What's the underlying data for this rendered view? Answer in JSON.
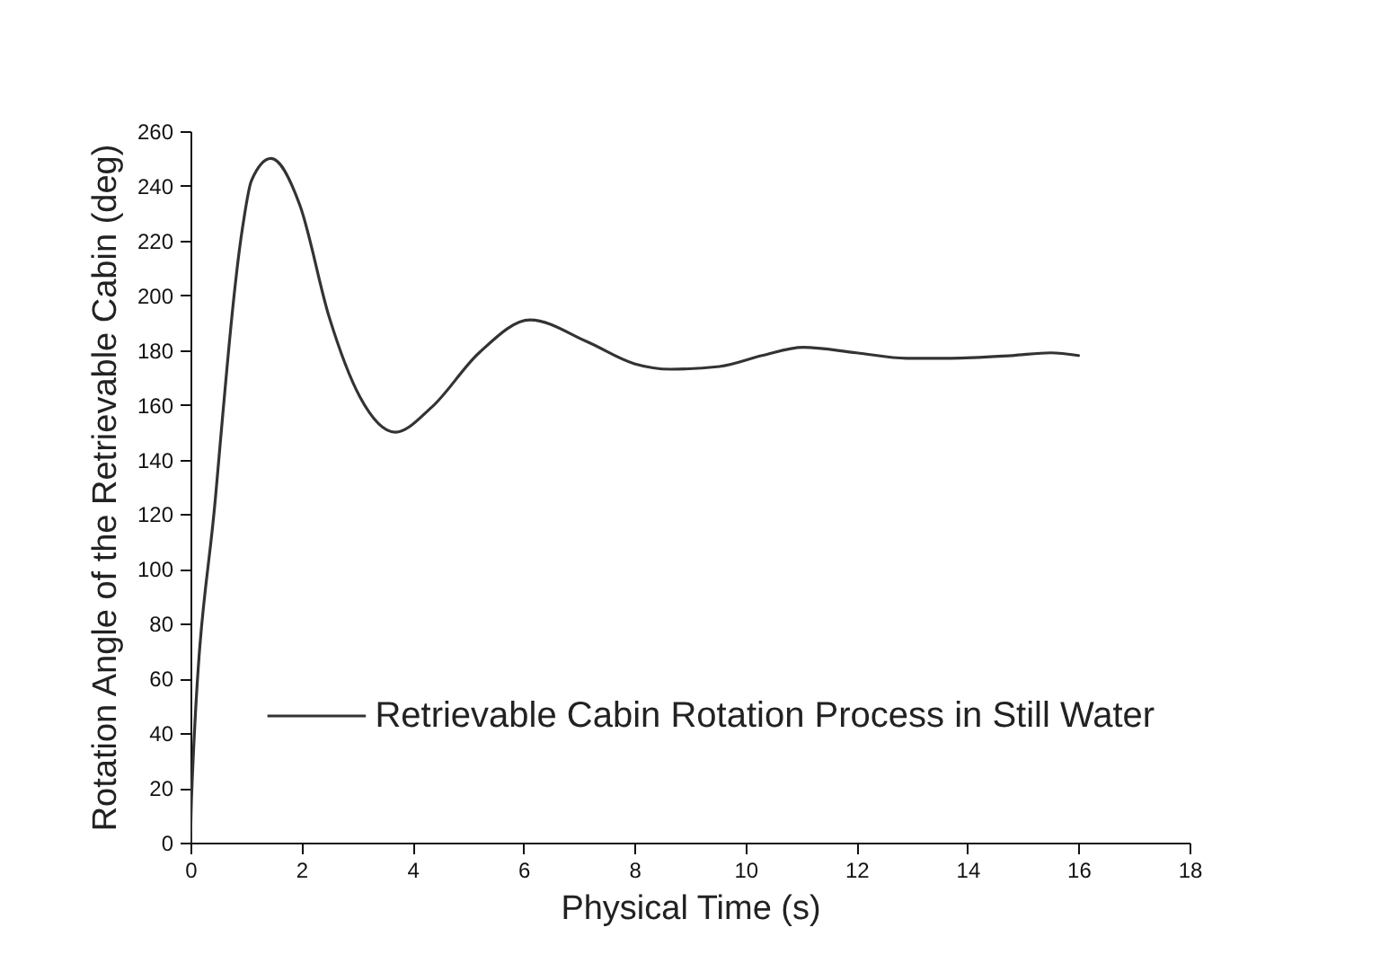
{
  "chart_data": {
    "type": "line",
    "xlabel": "Physical Time (s)",
    "ylabel": "Rotation Angle of the Retrievable Cabin (deg)",
    "x": [
      0,
      0.02,
      0.45,
      0.94,
      1.1,
      1.45,
      1.97,
      2.5,
      3.05,
      3.69,
      4.34,
      5.2,
      6.12,
      7.15,
      8.0,
      8.65,
      9.53,
      10.3,
      11.04,
      12.0,
      12.9,
      13.7,
      14.8,
      15.5,
      16.0
    ],
    "series": [
      {
        "name": "Retrievable Cabin Rotation Process in Still Water",
        "color": "#333333",
        "values": [
          0,
          17,
          126,
          225,
          242,
          250,
          233,
          192,
          163,
          150,
          159,
          179,
          191,
          183,
          175,
          173,
          174,
          178,
          181,
          179,
          177,
          177,
          178,
          179,
          178
        ]
      }
    ],
    "xlim": [
      0,
      18
    ],
    "xticks": [
      0,
      2,
      4,
      6,
      8,
      10,
      12,
      14,
      16,
      18
    ],
    "ylim": [
      0,
      260
    ],
    "yticks": [
      0,
      20,
      40,
      60,
      80,
      100,
      120,
      140,
      160,
      180,
      200,
      220,
      240,
      260
    ],
    "legend": "bottom",
    "grid": false
  }
}
